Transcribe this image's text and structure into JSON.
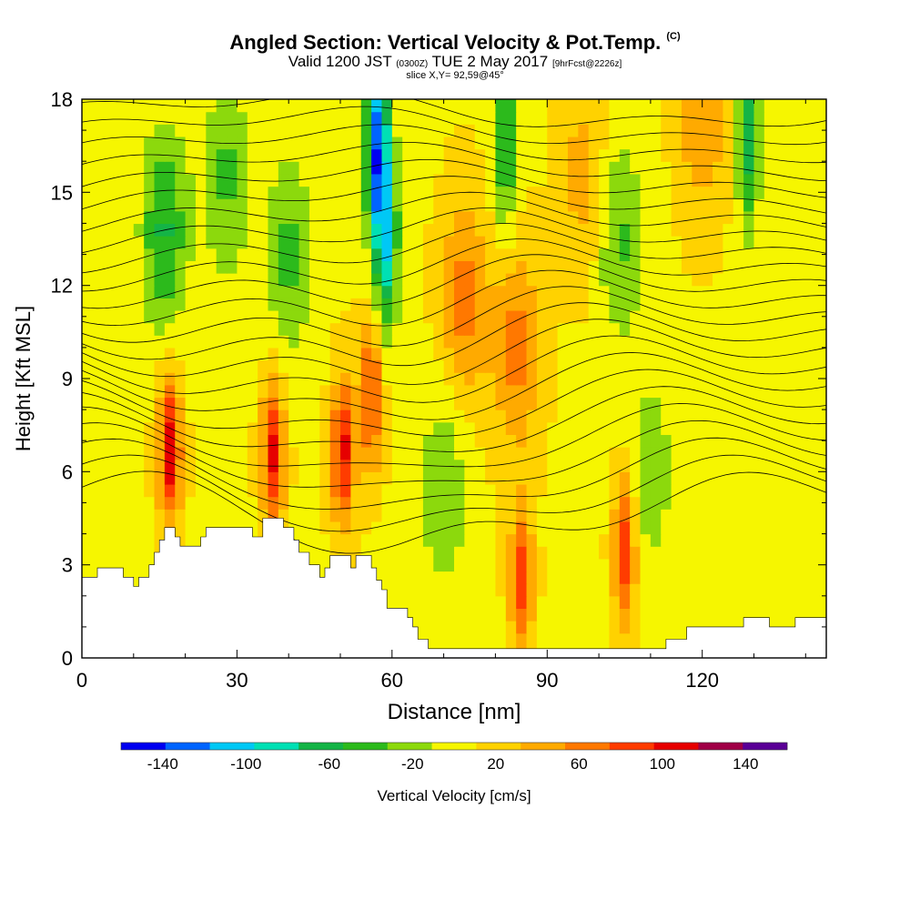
{
  "header": {
    "title": "Angled Section: Vertical Velocity & Pot.Temp.",
    "title_mark": "(C)",
    "valid_prefix": "Valid 1200 JST",
    "valid_utc": "(0300Z)",
    "valid_date": "TUE 2 May 2017",
    "forecast": "[9hrFcst@2226z]",
    "slice": "slice X,Y= 92,59@45°"
  },
  "chart_data": {
    "type": "heatmap",
    "xlabel": "Distance [nm]",
    "ylabel": "Height [Kft MSL]",
    "xlim": [
      0,
      144
    ],
    "ylim": [
      0,
      18
    ],
    "x_ticks": [
      0,
      30,
      60,
      90,
      120
    ],
    "y_ticks": [
      0,
      3,
      6,
      9,
      12,
      15,
      18
    ],
    "terrain_kft": [
      [
        0,
        2.6
      ],
      [
        3,
        2.6
      ],
      [
        3,
        2.9
      ],
      [
        8,
        2.9
      ],
      [
        8,
        2.6
      ],
      [
        10,
        2.6
      ],
      [
        10,
        2.3
      ],
      [
        11,
        2.3
      ],
      [
        11,
        2.6
      ],
      [
        13,
        2.6
      ],
      [
        13,
        3.0
      ],
      [
        14,
        3.0
      ],
      [
        14,
        3.4
      ],
      [
        15,
        3.4
      ],
      [
        15,
        3.8
      ],
      [
        16,
        3.8
      ],
      [
        16,
        4.2
      ],
      [
        18,
        4.2
      ],
      [
        18,
        3.9
      ],
      [
        19,
        3.9
      ],
      [
        19,
        3.6
      ],
      [
        23,
        3.6
      ],
      [
        23,
        3.9
      ],
      [
        24,
        3.9
      ],
      [
        24,
        4.2
      ],
      [
        33,
        4.2
      ],
      [
        33,
        3.9
      ],
      [
        35,
        3.9
      ],
      [
        35,
        4.5
      ],
      [
        39,
        4.5
      ],
      [
        39,
        4.2
      ],
      [
        41,
        4.2
      ],
      [
        41,
        3.8
      ],
      [
        42,
        3.8
      ],
      [
        42,
        3.4
      ],
      [
        44,
        3.4
      ],
      [
        44,
        3.0
      ],
      [
        46,
        3.0
      ],
      [
        46,
        2.6
      ],
      [
        47,
        2.6
      ],
      [
        47,
        2.9
      ],
      [
        48,
        2.9
      ],
      [
        48,
        3.3
      ],
      [
        52,
        3.3
      ],
      [
        52,
        2.9
      ],
      [
        53,
        2.9
      ],
      [
        53,
        3.3
      ],
      [
        56,
        3.3
      ],
      [
        56,
        2.9
      ],
      [
        57,
        2.9
      ],
      [
        57,
        2.5
      ],
      [
        58,
        2.5
      ],
      [
        58,
        2.2
      ],
      [
        59,
        2.2
      ],
      [
        59,
        1.6
      ],
      [
        63,
        1.6
      ],
      [
        63,
        1.3
      ],
      [
        64,
        1.3
      ],
      [
        64,
        1.0
      ],
      [
        65,
        1.0
      ],
      [
        65,
        0.6
      ],
      [
        67,
        0.6
      ],
      [
        67,
        0.3
      ],
      [
        113,
        0.3
      ],
      [
        113,
        0.6
      ],
      [
        117,
        0.6
      ],
      [
        117,
        1.0
      ],
      [
        128,
        1.0
      ],
      [
        128,
        1.3
      ],
      [
        133,
        1.3
      ],
      [
        133,
        1.0
      ],
      [
        138,
        1.0
      ],
      [
        138,
        1.3
      ],
      [
        144,
        1.3
      ]
    ],
    "colorbar": {
      "label": "Vertical Velocity [cm/s]",
      "tick_labels": [
        "-140",
        "-100",
        "-60",
        "-20",
        "20",
        "60",
        "100",
        "140"
      ],
      "tick_values": [
        -140,
        -100,
        -60,
        -20,
        20,
        60,
        100,
        140
      ],
      "bounds": [
        -160,
        160
      ],
      "colors": [
        "#0000f0",
        "#0064ff",
        "#00c8f5",
        "#00e0b4",
        "#14b446",
        "#2cba1c",
        "#8cd90c",
        "#f6f600",
        "#ffd200",
        "#ffaa00",
        "#ff7800",
        "#ff3c00",
        "#e60000",
        "#a00046",
        "#5a0096"
      ]
    },
    "updrafts": [
      {
        "x": 17,
        "y": 6.8,
        "peak": 105
      },
      {
        "x": 37,
        "y": 6.6,
        "peak": 95
      },
      {
        "x": 50.5,
        "y": 6.6,
        "peak": 95
      },
      {
        "x": 56,
        "y": 8.5,
        "peak": 80
      },
      {
        "x": 85,
        "y": 2.6,
        "peak": 75
      },
      {
        "x": 105,
        "y": 3.6,
        "peak": 85
      },
      {
        "x": 74,
        "y": 11.5,
        "peak": 55
      },
      {
        "x": 84,
        "y": 10.0,
        "peak": 55
      },
      {
        "x": 120,
        "y": 17.5,
        "peak": 45
      },
      {
        "x": 97,
        "y": 15.5,
        "peak": 35
      }
    ],
    "downdrafts": [
      {
        "x": 57,
        "y": 16.5,
        "peak": -130
      },
      {
        "x": 59,
        "y": 13.5,
        "peak": -90
      },
      {
        "x": 16,
        "y": 13.8,
        "peak": -65
      },
      {
        "x": 82,
        "y": 17.0,
        "peak": -75
      },
      {
        "x": 129,
        "y": 17.0,
        "peak": -75
      },
      {
        "x": 40,
        "y": 13.0,
        "peak": -45
      },
      {
        "x": 28,
        "y": 15.5,
        "peak": -45
      },
      {
        "x": 104,
        "y": 13.5,
        "peak": -45
      },
      {
        "x": 70,
        "y": 5.5,
        "peak": -40
      },
      {
        "x": 110,
        "y": 6.0,
        "peak": -35
      }
    ]
  }
}
